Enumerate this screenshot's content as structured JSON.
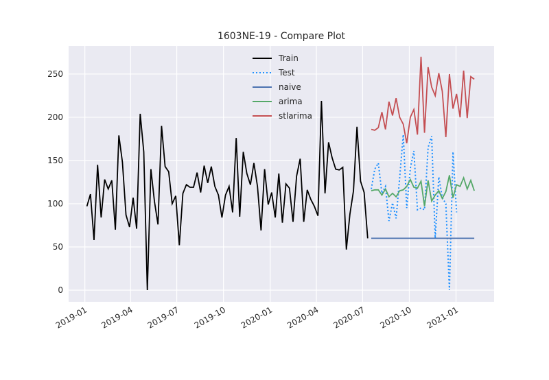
{
  "chart_data": {
    "type": "line",
    "title": "1603NE-19 - Compare Plot",
    "xlim": [
      17865,
      18703
    ],
    "ylim": [
      -13.5,
      282.5
    ],
    "xticks": [
      {
        "value": 17897,
        "label": "2019-01"
      },
      {
        "value": 17987,
        "label": "2019-04"
      },
      {
        "value": 18078,
        "label": "2019-07"
      },
      {
        "value": 18170,
        "label": "2019-10"
      },
      {
        "value": 18262,
        "label": "2020-01"
      },
      {
        "value": 18353,
        "label": "2020-04"
      },
      {
        "value": 18444,
        "label": "2020-07"
      },
      {
        "value": 18536,
        "label": "2020-10"
      },
      {
        "value": 18628,
        "label": "2021-01"
      }
    ],
    "yticks": [
      0,
      50,
      100,
      150,
      200,
      250
    ],
    "grid": true,
    "legend": "upper center",
    "series": [
      {
        "name": "Train",
        "color": "#000000",
        "linestyle": "solid",
        "x": [
          17901,
          17908,
          17915,
          17922,
          17929,
          17936,
          17943,
          17950,
          17957,
          17964,
          17971,
          17978,
          17985,
          17992,
          17999,
          18006,
          18013,
          18020,
          18027,
          18034,
          18041,
          18048,
          18055,
          18062,
          18069,
          18076,
          18083,
          18090,
          18097,
          18104,
          18111,
          18118,
          18125,
          18132,
          18139,
          18146,
          18153,
          18160,
          18167,
          18174,
          18181,
          18188,
          18195,
          18202,
          18209,
          18216,
          18223,
          18230,
          18237,
          18244,
          18251,
          18258,
          18265,
          18272,
          18279,
          18286,
          18293,
          18300,
          18307,
          18314,
          18321,
          18328,
          18335,
          18342,
          18349,
          18356,
          18363,
          18370,
          18377,
          18384,
          18391,
          18398,
          18405,
          18412,
          18419,
          18426,
          18433,
          18440,
          18447,
          18454
        ],
        "values": [
          97,
          111,
          58,
          145,
          84,
          128,
          117,
          127,
          70,
          179,
          148,
          87,
          73,
          107,
          71,
          204,
          160,
          0,
          140,
          103,
          76,
          190,
          143,
          137,
          100,
          109,
          52,
          112,
          122,
          119,
          119,
          136,
          113,
          144,
          124,
          143,
          120,
          110,
          84,
          110,
          120,
          90,
          176,
          85,
          160,
          135,
          122,
          147,
          120,
          69,
          140,
          99,
          113,
          84,
          135,
          78,
          123,
          118,
          79,
          132,
          152,
          79,
          116,
          105,
          97,
          86,
          219,
          112,
          171,
          153,
          140,
          139,
          142,
          47,
          88,
          115,
          189,
          126,
          113,
          60
        ]
      },
      {
        "name": "Test",
        "color": "#1e90ff",
        "linestyle": "dotted",
        "x": [
          18461,
          18468,
          18475,
          18482,
          18489,
          18496,
          18503,
          18510,
          18517,
          18524,
          18531,
          18538,
          18545,
          18552,
          18559,
          18566,
          18573,
          18580,
          18587,
          18594,
          18601,
          18608,
          18615,
          18622,
          18629,
          18636,
          18643,
          18650,
          18657,
          18664
        ],
        "values": [
          117,
          140,
          147,
          112,
          120,
          80,
          101,
          83,
          130,
          180,
          95,
          141,
          161,
          93,
          95,
          93,
          165,
          178,
          60,
          131,
          107,
          100,
          0,
          160,
          90,
          null,
          null,
          null,
          null,
          null
        ]
      },
      {
        "name": "naive",
        "color": "#4c72b0",
        "linestyle": "solid",
        "x": [
          18461,
          18468,
          18475,
          18482,
          18489,
          18496,
          18503,
          18510,
          18517,
          18524,
          18531,
          18538,
          18545,
          18552,
          18559,
          18566,
          18573,
          18580,
          18587,
          18594,
          18601,
          18608,
          18615,
          18622,
          18629,
          18636,
          18643,
          18650,
          18657,
          18664
        ],
        "values": [
          60,
          60,
          60,
          60,
          60,
          60,
          60,
          60,
          60,
          60,
          60,
          60,
          60,
          60,
          60,
          60,
          60,
          60,
          60,
          60,
          60,
          60,
          60,
          60,
          60,
          60,
          60,
          60,
          60,
          60
        ]
      },
      {
        "name": "arima",
        "color": "#55a868",
        "linestyle": "solid",
        "x": [
          18461,
          18468,
          18475,
          18482,
          18489,
          18496,
          18503,
          18510,
          18517,
          18524,
          18531,
          18538,
          18545,
          18552,
          18559,
          18566,
          18573,
          18580,
          18587,
          18594,
          18601,
          18608,
          18615,
          18622,
          18629,
          18636,
          18643,
          18650,
          18657,
          18664
        ],
        "values": [
          115,
          116,
          116,
          110,
          117,
          108,
          112,
          108,
          115,
          116,
          120,
          128,
          119,
          118,
          126,
          97,
          127,
          103,
          110,
          115,
          106,
          114,
          133,
          107,
          122,
          120,
          130,
          117,
          127,
          115
        ]
      },
      {
        "name": "stlarima",
        "color": "#c44e52",
        "linestyle": "solid",
        "x": [
          18461,
          18468,
          18475,
          18482,
          18489,
          18496,
          18503,
          18510,
          18517,
          18524,
          18531,
          18538,
          18545,
          18552,
          18559,
          18566,
          18573,
          18580,
          18587,
          18594,
          18601,
          18608,
          18615,
          18622,
          18629,
          18636,
          18643,
          18650,
          18657,
          18664
        ],
        "values": [
          186,
          185,
          188,
          206,
          186,
          218,
          202,
          222,
          200,
          192,
          170,
          200,
          209,
          180,
          270,
          182,
          258,
          235,
          225,
          251,
          230,
          177,
          250,
          210,
          227,
          200,
          254,
          199,
          247,
          244
        ]
      }
    ]
  }
}
